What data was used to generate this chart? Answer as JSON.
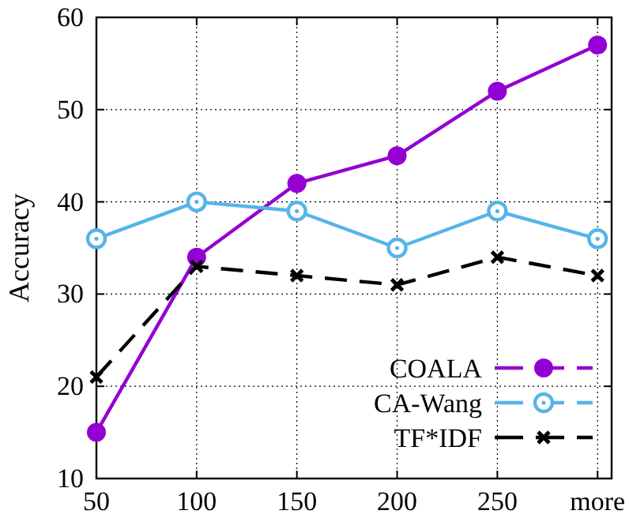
{
  "chart_data": {
    "type": "line",
    "ylabel": "Accuracy",
    "categories": [
      "50",
      "100",
      "150",
      "200",
      "250",
      "more"
    ],
    "series": [
      {
        "name": "COALA",
        "color": "#9400d3",
        "values": [
          15,
          34,
          42,
          45,
          52,
          57
        ],
        "marker": "circle",
        "line_style": "solid"
      },
      {
        "name": "CA-Wang",
        "color": "#56b4e9",
        "values": [
          36,
          40,
          39,
          35,
          39,
          36
        ],
        "marker": "circle",
        "line_style": "solid"
      },
      {
        "name": "TF*IDF",
        "color": "#000000",
        "values": [
          21,
          33,
          32,
          31,
          34,
          32
        ],
        "marker": "cross",
        "line_style": "dashed"
      }
    ],
    "ylim": [
      10,
      60
    ],
    "yticks": [
      10,
      20,
      30,
      40,
      50,
      60
    ],
    "grid": true,
    "legend": "bottom right"
  }
}
